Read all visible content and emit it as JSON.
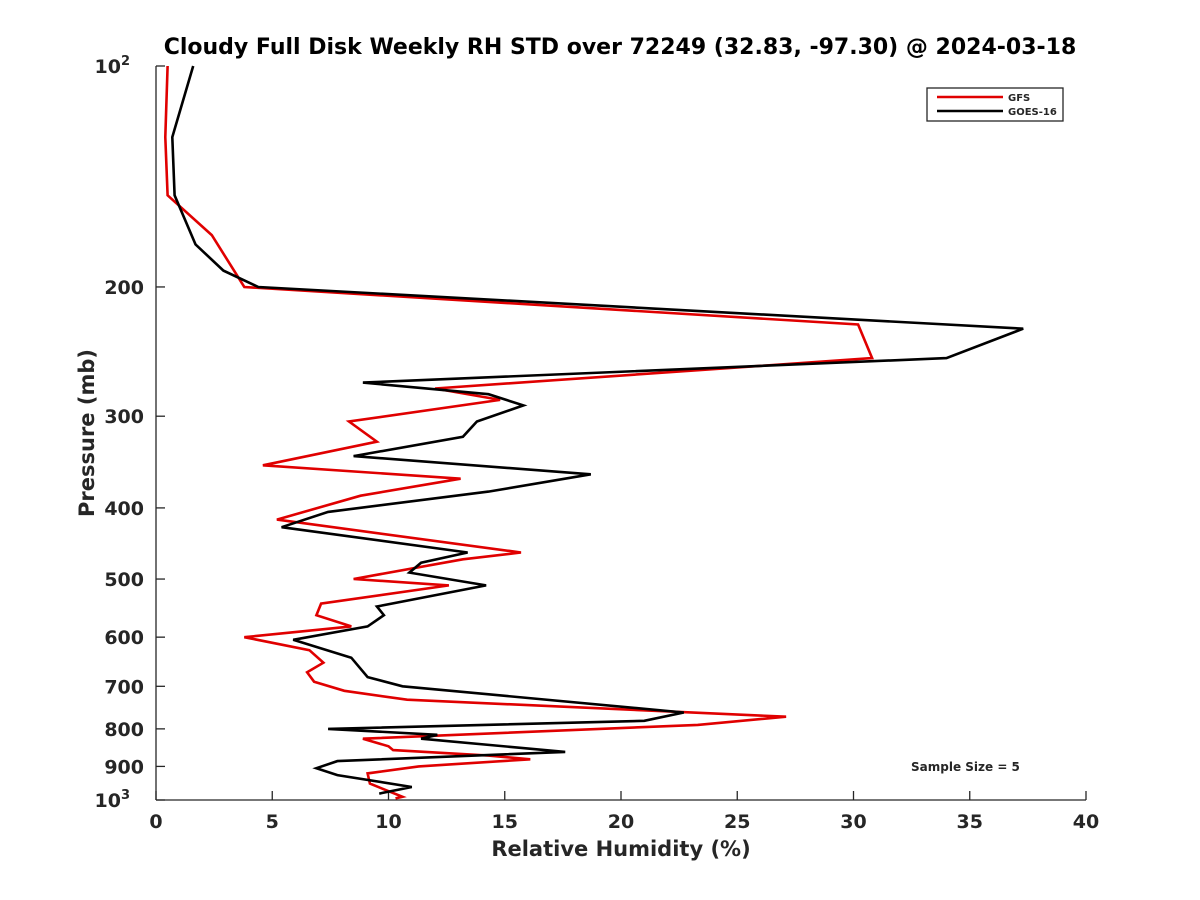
{
  "chart_data": {
    "type": "line",
    "title": "Cloudy Full Disk Weekly RH STD over 72249 (32.83, -97.30) @ 2024-03-18",
    "xlabel": "Relative Humidity (%)",
    "ylabel": "Pressure (mb)",
    "xlim": [
      0,
      40
    ],
    "ylim": [
      100,
      1000
    ],
    "y_scale": "log",
    "y_inverted": true,
    "x_ticks": [
      "0",
      "5",
      "10",
      "15",
      "20",
      "25",
      "30",
      "35",
      "40"
    ],
    "y_ticks": [
      {
        "value": 100,
        "base": "10",
        "exp": "2"
      },
      {
        "value": 200,
        "base": "200",
        "exp": ""
      },
      {
        "value": 300,
        "base": "300",
        "exp": ""
      },
      {
        "value": 400,
        "base": "400",
        "exp": ""
      },
      {
        "value": 500,
        "base": "500",
        "exp": ""
      },
      {
        "value": 600,
        "base": "600",
        "exp": ""
      },
      {
        "value": 700,
        "base": "700",
        "exp": ""
      },
      {
        "value": 800,
        "base": "800",
        "exp": ""
      },
      {
        "value": 900,
        "base": "900",
        "exp": ""
      },
      {
        "value": 1000,
        "base": "10",
        "exp": "3"
      }
    ],
    "grid": false,
    "legend_position": "top-right",
    "annotation": "Sample Size = 5",
    "series": [
      {
        "name": "GFS",
        "color": "#e00000",
        "points": [
          [
            0.5,
            100
          ],
          [
            0.4,
            125
          ],
          [
            0.5,
            150
          ],
          [
            2.4,
            170
          ],
          [
            3.8,
            200
          ],
          [
            30.2,
            225
          ],
          [
            30.8,
            250
          ],
          [
            12.0,
            275
          ],
          [
            14.8,
            285
          ],
          [
            8.3,
            305
          ],
          [
            9.5,
            325
          ],
          [
            4.6,
            350
          ],
          [
            13.1,
            365
          ],
          [
            8.8,
            385
          ],
          [
            5.2,
            415
          ],
          [
            15.7,
            460
          ],
          [
            13.2,
            470
          ],
          [
            8.5,
            500
          ],
          [
            12.6,
            510
          ],
          [
            7.1,
            540
          ],
          [
            6.9,
            560
          ],
          [
            8.4,
            580
          ],
          [
            3.8,
            600
          ],
          [
            6.6,
            625
          ],
          [
            7.2,
            650
          ],
          [
            6.5,
            670
          ],
          [
            6.8,
            690
          ],
          [
            8.1,
            710
          ],
          [
            10.8,
            730
          ],
          [
            27.1,
            770
          ],
          [
            23.3,
            790
          ],
          [
            8.9,
            825
          ],
          [
            10.0,
            845
          ],
          [
            10.2,
            855
          ],
          [
            14.3,
            870
          ],
          [
            16.1,
            880
          ],
          [
            11.3,
            900
          ],
          [
            9.1,
            920
          ],
          [
            9.2,
            950
          ],
          [
            10.6,
            990
          ],
          [
            10.3,
            995
          ]
        ]
      },
      {
        "name": "GOES-16",
        "color": "#000000",
        "points": [
          [
            1.6,
            100
          ],
          [
            0.7,
            125
          ],
          [
            0.8,
            150
          ],
          [
            1.7,
            175
          ],
          [
            2.9,
            190
          ],
          [
            4.4,
            200
          ],
          [
            37.3,
            228
          ],
          [
            34.0,
            250
          ],
          [
            8.9,
            270
          ],
          [
            14.3,
            280
          ],
          [
            15.8,
            290
          ],
          [
            13.8,
            305
          ],
          [
            13.2,
            320
          ],
          [
            8.5,
            340
          ],
          [
            18.7,
            360
          ],
          [
            14.3,
            380
          ],
          [
            7.4,
            405
          ],
          [
            5.4,
            425
          ],
          [
            13.4,
            460
          ],
          [
            11.4,
            475
          ],
          [
            10.9,
            490
          ],
          [
            14.2,
            510
          ],
          [
            9.5,
            545
          ],
          [
            9.8,
            560
          ],
          [
            9.1,
            580
          ],
          [
            5.9,
            605
          ],
          [
            8.4,
            640
          ],
          [
            9.1,
            680
          ],
          [
            10.6,
            700
          ],
          [
            22.7,
            760
          ],
          [
            21.0,
            780
          ],
          [
            7.4,
            800
          ],
          [
            12.1,
            815
          ],
          [
            11.4,
            825
          ],
          [
            17.6,
            860
          ],
          [
            7.8,
            885
          ],
          [
            6.9,
            905
          ],
          [
            7.8,
            925
          ],
          [
            11.0,
            960
          ],
          [
            9.6,
            980
          ]
        ]
      }
    ]
  }
}
